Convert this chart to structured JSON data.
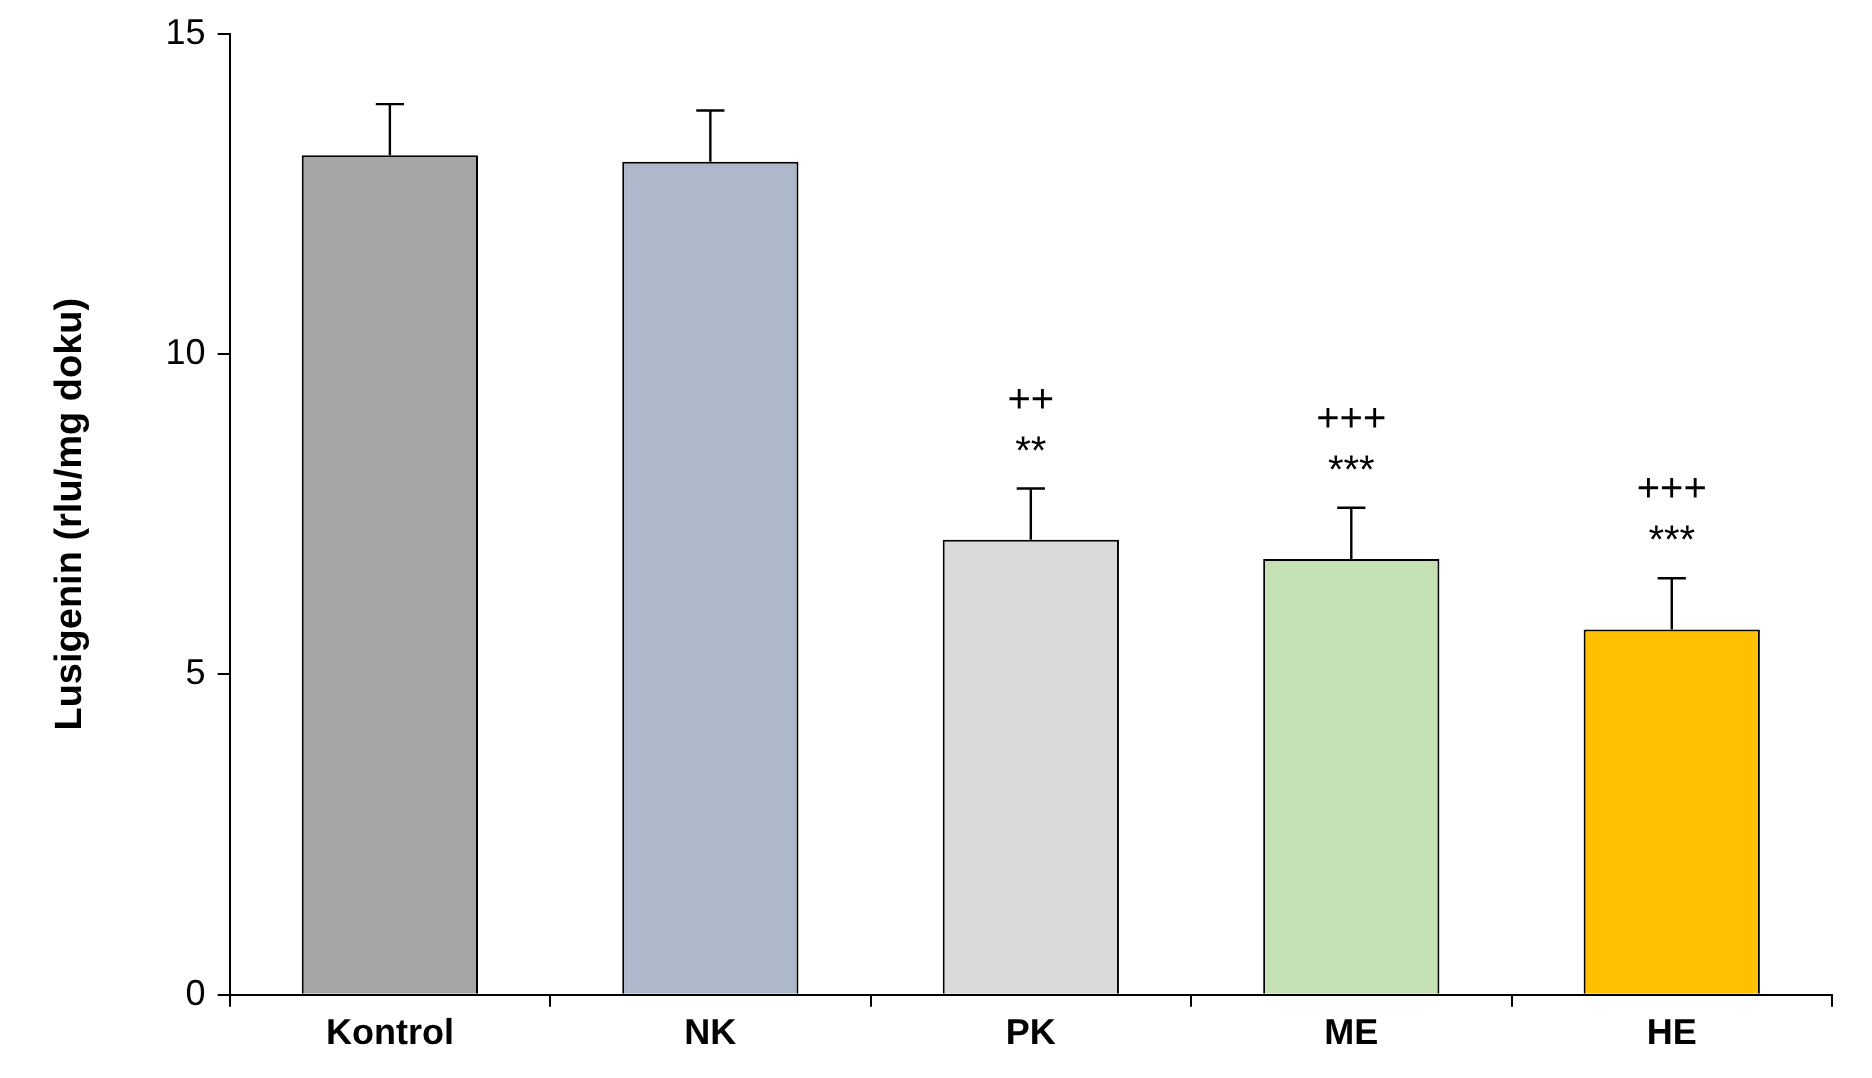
{
  "chart_data": {
    "type": "bar",
    "ylabel": "Lusigenin (rlu/mg doku)",
    "categories": [
      "Kontrol",
      "NK",
      "PK",
      "ME",
      "HE"
    ],
    "values": [
      13.1,
      13.0,
      7.1,
      6.8,
      5.7
    ],
    "colors": [
      "#a5a5a5",
      "#adb9ca",
      "#d9d9d9",
      "#c5e0b4",
      "#ffc000"
    ],
    "errors": [
      [
        13.1,
        13.9
      ],
      [
        13.0,
        13.8
      ],
      [
        7.1,
        7.9
      ],
      [
        6.8,
        7.6
      ],
      [
        5.7,
        6.5
      ]
    ],
    "ylim": [
      0,
      15
    ],
    "yticks": [
      0,
      5,
      10,
      15
    ],
    "grid": false,
    "legend": false,
    "annotations": [
      {
        "text": "++",
        "x": "PK",
        "y": 7.9
      },
      {
        "text": "**",
        "x": "PK",
        "y": 7.9
      },
      {
        "text": "+++",
        "x": "ME",
        "y": 7.6
      },
      {
        "text": "***",
        "x": "ME",
        "y": 7.6
      },
      {
        "text": "+++",
        "x": "HE",
        "y": 6.5
      },
      {
        "text": "***",
        "x": "HE",
        "y": 6.5
      }
    ]
  }
}
